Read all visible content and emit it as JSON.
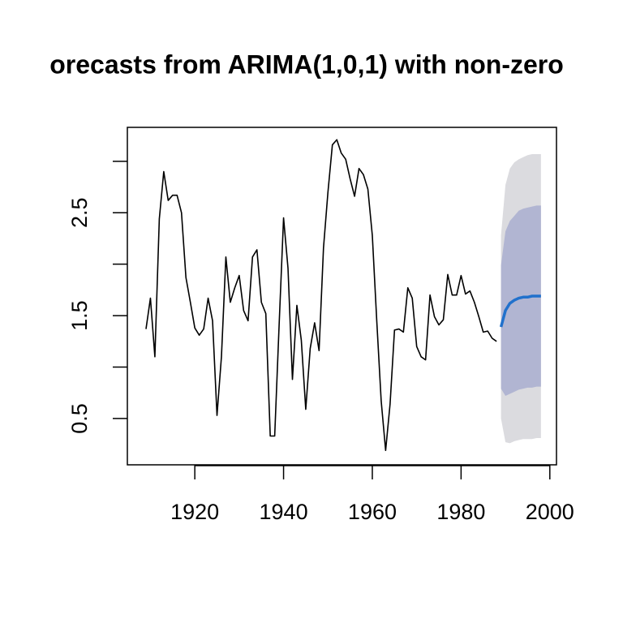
{
  "chart_data": {
    "type": "line",
    "title": "orecasts from ARIMA(1,0,1) with non-zero",
    "xlim": [
      1904.8,
      2001.5
    ],
    "ylim": [
      0.05,
      3.33
    ],
    "xticks": [
      1920,
      1940,
      1960,
      1980,
      2000
    ],
    "yticks": [
      0.5,
      {
        "value": 1,
        "label": null
      },
      1.5,
      {
        "value": 2,
        "label": null
      },
      2.5,
      {
        "value": 3,
        "label": null
      }
    ],
    "bands": [
      {
        "color": "#dbdbdf",
        "x": [
          1989,
          1990,
          1991,
          1992,
          1993,
          1994,
          1995,
          1996,
          1997,
          1998
        ],
        "lower": [
          0.5,
          0.27,
          0.26,
          0.28,
          0.29,
          0.3,
          0.3,
          0.3,
          0.31,
          0.31
        ],
        "upper": [
          2.28,
          2.77,
          2.93,
          2.99,
          3.02,
          3.04,
          3.06,
          3.07,
          3.07,
          3.07
        ]
      },
      {
        "color": "#b1b5d2",
        "x": [
          1989,
          1990,
          1991,
          1992,
          1993,
          1994,
          1995,
          1996,
          1997,
          1998
        ],
        "lower": [
          0.79,
          0.72,
          0.74,
          0.76,
          0.78,
          0.79,
          0.8,
          0.8,
          0.81,
          0.81
        ],
        "upper": [
          1.99,
          2.32,
          2.42,
          2.47,
          2.52,
          2.54,
          2.55,
          2.56,
          2.57,
          2.57
        ]
      }
    ],
    "series": [
      {
        "color": "#000000",
        "width": 1.6,
        "x": [
          1909,
          1910,
          1911,
          1912,
          1913,
          1914,
          1915,
          1916,
          1917,
          1918,
          1919,
          1920,
          1921,
          1922,
          1923,
          1924,
          1925,
          1926,
          1927,
          1928,
          1929,
          1930,
          1931,
          1932,
          1933,
          1934,
          1935,
          1936,
          1937,
          1938,
          1939,
          1940,
          1941,
          1942,
          1943,
          1944,
          1945,
          1946,
          1947,
          1948,
          1949,
          1950,
          1951,
          1952,
          1953,
          1954,
          1955,
          1956,
          1957,
          1958,
          1959,
          1960,
          1961,
          1962,
          1963,
          1964,
          1965,
          1966,
          1967,
          1968,
          1969,
          1970,
          1971,
          1972,
          1973,
          1974,
          1975,
          1976,
          1977,
          1978,
          1979,
          1980,
          1981,
          1982,
          1983,
          1984,
          1985,
          1986,
          1987,
          1988
        ],
        "values": [
          1.37,
          1.67,
          1.1,
          2.44,
          2.9,
          2.62,
          2.67,
          2.67,
          2.5,
          1.87,
          1.63,
          1.38,
          1.31,
          1.37,
          1.67,
          1.45,
          0.53,
          1.1,
          2.07,
          1.63,
          1.77,
          1.89,
          1.55,
          1.45,
          2.07,
          2.14,
          1.63,
          1.52,
          0.33,
          0.33,
          1.41,
          2.45,
          1.96,
          0.88,
          1.6,
          1.26,
          0.59,
          1.18,
          1.43,
          1.16,
          2.16,
          2.7,
          3.16,
          3.21,
          3.08,
          3.02,
          2.83,
          2.66,
          2.93,
          2.87,
          2.73,
          2.28,
          1.45,
          0.67,
          0.19,
          0.64,
          1.36,
          1.37,
          1.34,
          1.77,
          1.67,
          1.2,
          1.1,
          1.07,
          1.7,
          1.49,
          1.41,
          1.46,
          1.9,
          1.7,
          1.7,
          1.89,
          1.71,
          1.74,
          1.63,
          1.49,
          1.34,
          1.35,
          1.28,
          1.25
        ]
      },
      {
        "color": "#2171cc",
        "width": 3.5,
        "x": [
          1989,
          1990,
          1991,
          1992,
          1993,
          1994,
          1995,
          1996,
          1997,
          1998
        ],
        "values": [
          1.39,
          1.55,
          1.62,
          1.65,
          1.67,
          1.68,
          1.68,
          1.69,
          1.69,
          1.69
        ]
      }
    ]
  }
}
